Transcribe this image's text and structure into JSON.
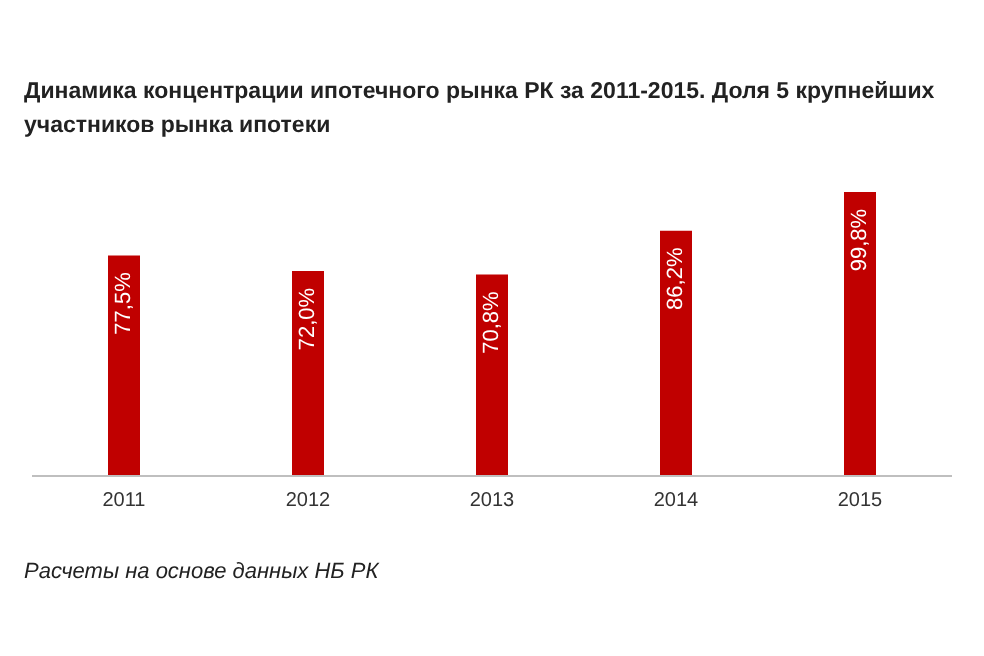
{
  "chart_data": {
    "type": "bar",
    "title": "Динамика концентрации ипотечного рынка РК за 2011-2015. Доля 5 крупнейших участников рынка ипотеки",
    "categories": [
      "2011",
      "2012",
      "2013",
      "2014",
      "2015"
    ],
    "values": [
      77.5,
      72.0,
      70.8,
      86.2,
      99.8
    ],
    "value_labels": [
      "77,5%",
      "72,0%",
      "70,8%",
      "86,2%",
      "99,8%"
    ],
    "color": "#c00000",
    "annotations": [
      "Расчеты на основе данных НБ РК"
    ]
  }
}
